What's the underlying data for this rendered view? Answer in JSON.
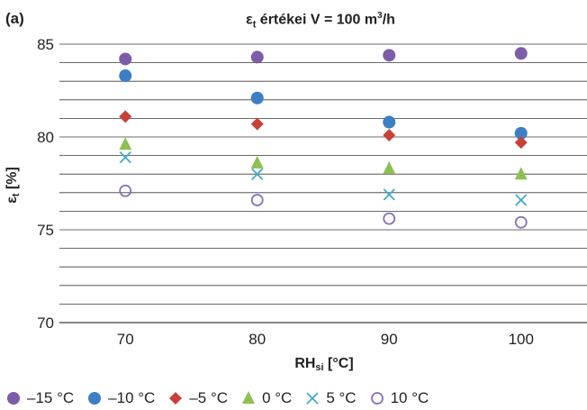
{
  "panel_label": "(a)",
  "title": {
    "main": "ε",
    "sub": "t",
    "rest": " értékei V = 100 m",
    "sup": "3",
    "tail": "/h"
  },
  "axis": {
    "ylabel_main": "ε",
    "ylabel_sub": "t",
    "ylabel_rest": " [%]",
    "xlabel_main": "RH",
    "xlabel_sub": "si",
    "xlabel_rest": " [°C]"
  },
  "chart_data": {
    "type": "scatter",
    "x_categories": [
      "70",
      "80",
      "90",
      "100"
    ],
    "ylim": [
      70,
      85
    ],
    "yticks": [
      70,
      75,
      80,
      85
    ],
    "minor_gridlines_every": 1,
    "grid": true,
    "legend_position": "bottom",
    "series": [
      {
        "name": "–15 °C",
        "marker": "circle-filled",
        "color": "#7b5ea7",
        "values": [
          84.2,
          84.3,
          84.4,
          84.5
        ]
      },
      {
        "name": "–10 °C",
        "marker": "circle-filled",
        "color": "#3c7fc4",
        "values": [
          83.3,
          82.1,
          80.8,
          80.2
        ]
      },
      {
        "name": "–5 °C",
        "marker": "diamond",
        "color": "#c9403a",
        "values": [
          81.1,
          80.7,
          80.1,
          79.7
        ]
      },
      {
        "name": "0 °C",
        "marker": "triangle",
        "color": "#8dc051",
        "values": [
          79.6,
          78.6,
          78.3,
          78.0
        ]
      },
      {
        "name": "5 °C",
        "marker": "cross",
        "color": "#42aac6",
        "values": [
          78.9,
          78.0,
          76.9,
          76.6
        ]
      },
      {
        "name": "10 °C",
        "marker": "circle-open",
        "color": "#8a6fb8",
        "values": [
          77.1,
          76.6,
          75.6,
          75.4
        ]
      }
    ]
  }
}
